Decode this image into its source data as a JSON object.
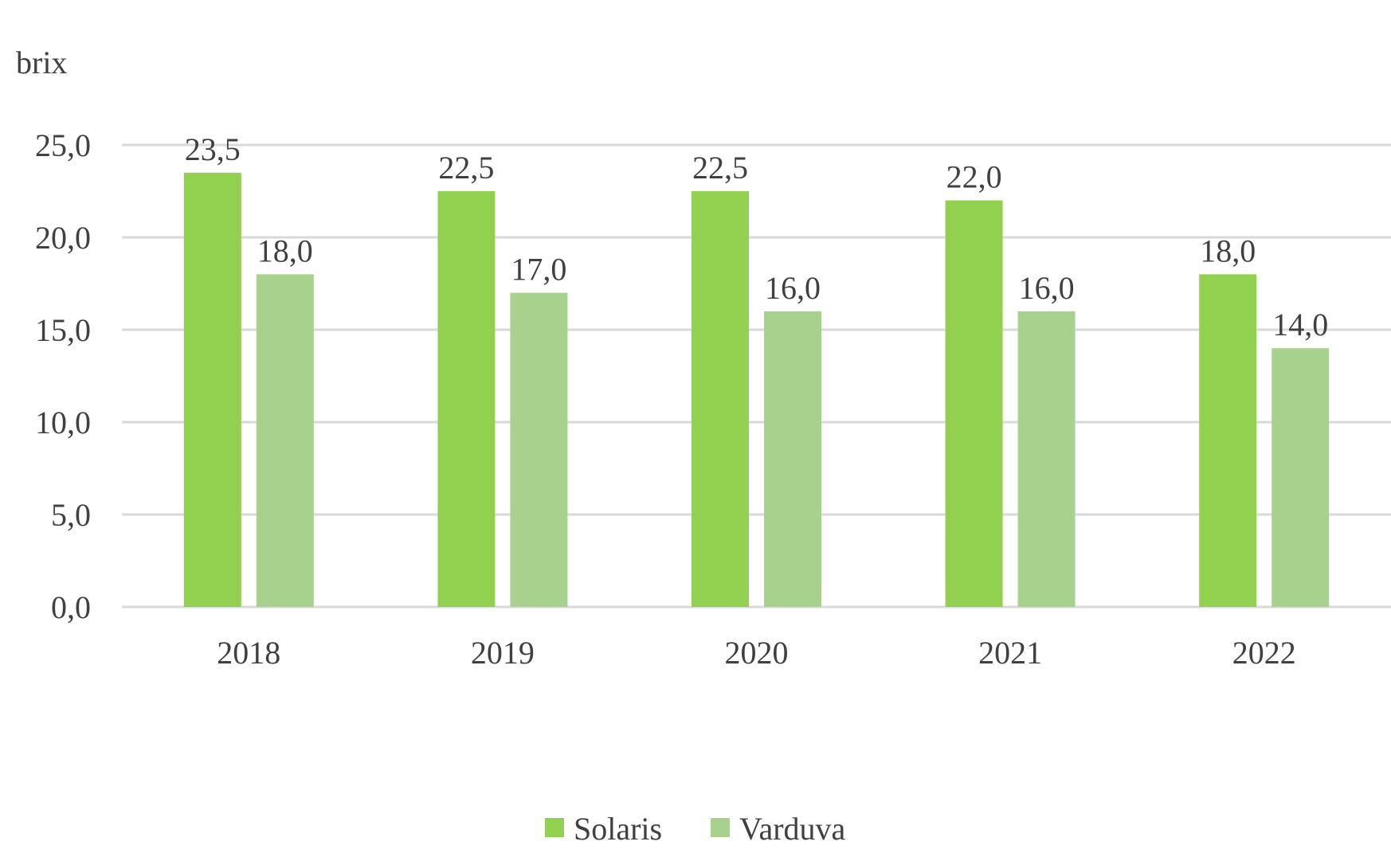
{
  "chart_data": {
    "type": "bar",
    "title": "",
    "xlabel": "",
    "ylabel": "brix",
    "categories": [
      "2018",
      "2019",
      "2020",
      "2021",
      "2022"
    ],
    "series": [
      {
        "name": "Solaris",
        "values": [
          23.5,
          22.5,
          22.5,
          22.0,
          18.0
        ],
        "color": "#92d050"
      },
      {
        "name": "Varduva",
        "values": [
          18.0,
          17.0,
          16.0,
          16.0,
          14.0
        ],
        "color": "#a9d18e"
      }
    ],
    "data_labels": [
      [
        "23,5",
        "22,5",
        "22,5",
        "22,0",
        "18,0"
      ],
      [
        "18,0",
        "17,0",
        "16,0",
        "16,0",
        "14,0"
      ]
    ],
    "yticks": [
      "0,0",
      "5,0",
      "10,0",
      "15,0",
      "20,0",
      "25,0"
    ],
    "ytick_values": [
      0,
      5,
      10,
      15,
      20,
      25
    ],
    "ylim": [
      0,
      25
    ],
    "grid": true,
    "gridline_color": "#d9d9d9",
    "legend_position": "bottom"
  }
}
